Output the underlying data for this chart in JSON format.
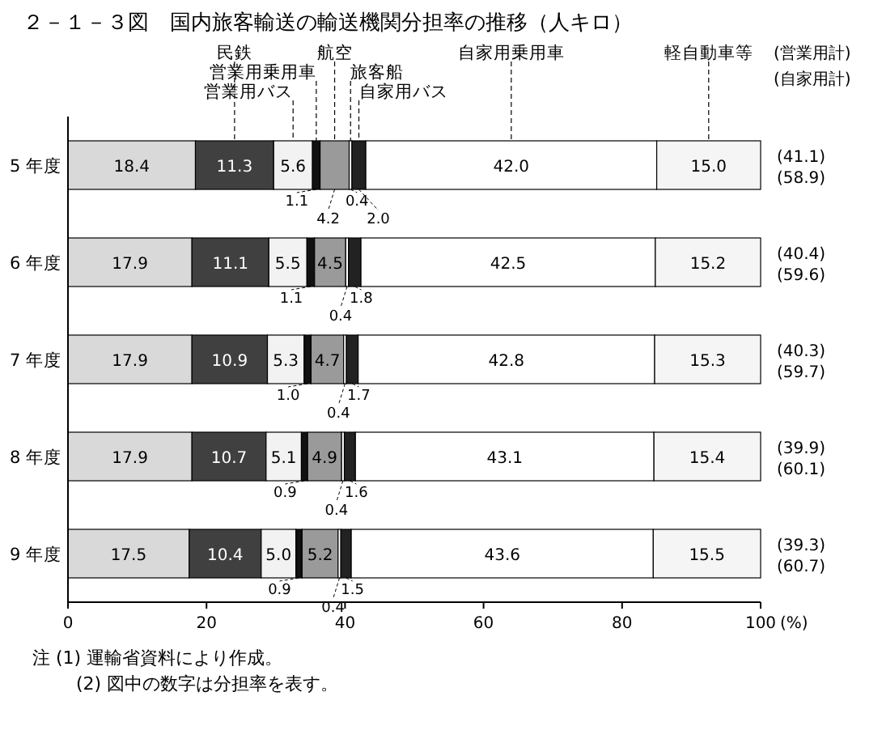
{
  "chart_data": {
    "type": "bar",
    "orientation": "horizontal",
    "stacked": true,
    "title": "２－１－３図　国内旅客輸送の輸送機関分担率の推移（人キロ）",
    "xlabel": "(%)",
    "categories": [
      "5 年度",
      "6 年度",
      "7 年度",
      "8 年度",
      "9 年度"
    ],
    "series": [
      {
        "color": "#d9d9d9",
        "values": [
          18.4,
          17.9,
          17.9,
          17.9,
          17.5
        ],
        "value_labels": [
          "18.4",
          "17.9",
          "17.9",
          "17.9",
          "17.5"
        ]
      },
      {
        "name": "民鉄",
        "color": "#404040",
        "values": [
          11.3,
          11.1,
          10.9,
          10.7,
          10.4
        ],
        "value_labels": [
          "11.3",
          "11.1",
          "10.9",
          "10.7",
          "10.4"
        ]
      },
      {
        "name": "営業用バス",
        "color": "#f2f2f2",
        "values": [
          5.6,
          5.5,
          5.3,
          5.1,
          5.0
        ],
        "value_labels": [
          "5.6",
          "5.5",
          "5.3",
          "5.1",
          "5.0"
        ]
      },
      {
        "name": "営業用乗用車",
        "color": "#111111",
        "values": [
          1.1,
          1.1,
          1.0,
          0.9,
          0.9
        ],
        "value_labels": [
          "1.1",
          "1.1",
          "1.0",
          "0.9",
          "0.9"
        ]
      },
      {
        "name": "航空",
        "color": "#9a9a9a",
        "values": [
          4.2,
          4.5,
          4.7,
          4.9,
          5.2
        ],
        "value_labels": [
          "4.2",
          "4.5",
          "4.7",
          "4.9",
          "5.2"
        ]
      },
      {
        "name": "旅客船",
        "color": "#ffffff",
        "values": [
          0.4,
          0.4,
          0.4,
          0.4,
          0.4
        ],
        "value_labels": [
          "0.4",
          "0.4",
          "0.4",
          "0.4",
          "0.4"
        ]
      },
      {
        "name": "自家用バス",
        "color": "#222222",
        "values": [
          2.0,
          1.8,
          1.7,
          1.6,
          1.5
        ],
        "value_labels": [
          "2.0",
          "1.8",
          "1.7",
          "1.6",
          "1.5"
        ]
      },
      {
        "name": "自家用乗用車",
        "color": "#ffffff",
        "values": [
          42.0,
          42.5,
          42.8,
          43.1,
          43.6
        ],
        "value_labels": [
          "42.0",
          "42.5",
          "42.8",
          "43.1",
          "43.6"
        ]
      },
      {
        "name": "軽自動車等",
        "color": "#f5f5f5",
        "values": [
          15.0,
          15.2,
          15.3,
          15.4,
          15.5
        ],
        "value_labels": [
          "15.0",
          "15.2",
          "15.3",
          "15.4",
          "15.5"
        ]
      }
    ],
    "legend": false,
    "xlim": [
      0,
      100
    ],
    "xticks": [
      0,
      20,
      40,
      60,
      80,
      100
    ],
    "annotations": [
      "(営業用計)",
      "(自家用計)",
      "(41.1)",
      "(58.9)",
      "(40.4)",
      "(59.6)",
      "(40.3)",
      "(59.7)",
      "(39.9)",
      "(60.1)",
      "(39.3)",
      "(60.7)",
      "注 (1)  運輸省資料により作成。",
      "(2)  図中の数字は分担率を表す。"
    ]
  }
}
